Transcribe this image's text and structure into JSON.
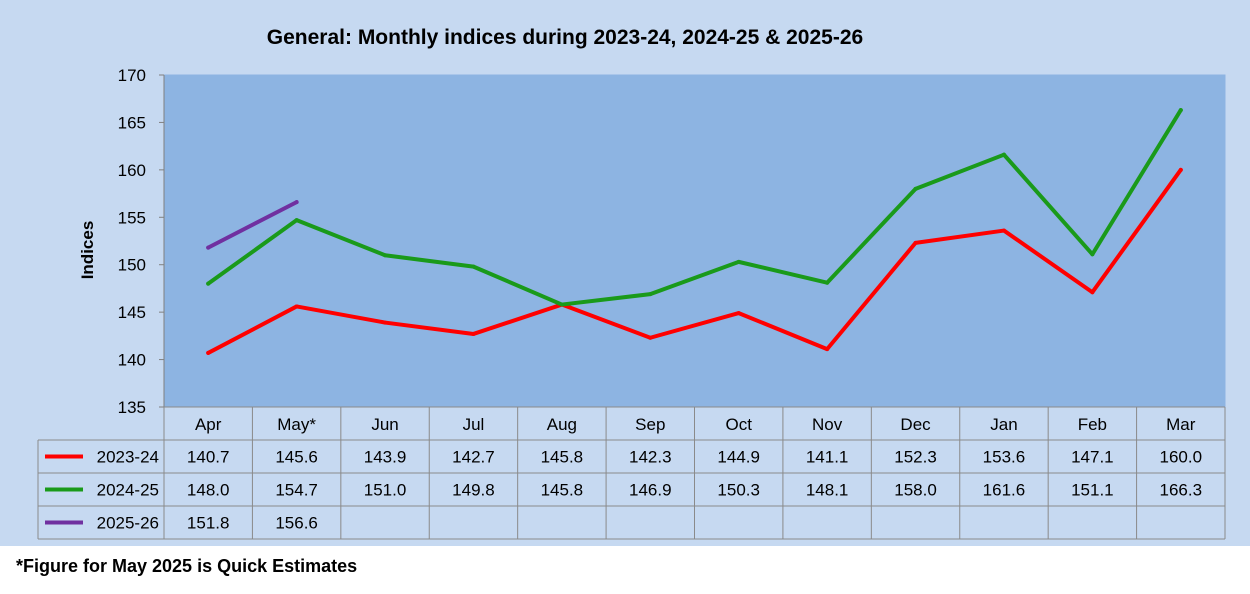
{
  "footnote": "*Figure for May 2025 is Quick Estimates",
  "colors": {
    "background": "#c6d9f1",
    "plot_area": "#8db4e2",
    "series_2023_24": "#ff0000",
    "series_2024_25": "#1a9a1a",
    "series_2025_26": "#7030a0"
  },
  "chart_data": {
    "type": "line",
    "title": "General: Monthly indices during 2023-24, 2024-25 & 2025-26",
    "ylabel": "Indices",
    "xlabel": "",
    "ylim": [
      135,
      170
    ],
    "yticks": [
      135,
      140,
      145,
      150,
      155,
      160,
      165,
      170
    ],
    "grid": false,
    "legend": "data table below the plot",
    "categories": [
      "Apr",
      "May*",
      "Jun",
      "Jul",
      "Aug",
      "Sep",
      "Oct",
      "Nov",
      "Dec",
      "Jan",
      "Feb",
      "Mar"
    ],
    "series": [
      {
        "name": "2023-24",
        "color": "#ff0000",
        "values": [
          140.7,
          145.6,
          143.9,
          142.7,
          145.8,
          142.3,
          144.9,
          141.1,
          152.3,
          153.6,
          147.1,
          160.0
        ]
      },
      {
        "name": "2024-25",
        "color": "#1a9a1a",
        "values": [
          148.0,
          154.7,
          151.0,
          149.8,
          145.8,
          146.9,
          150.3,
          148.1,
          158.0,
          161.6,
          151.1,
          166.3
        ]
      },
      {
        "name": "2025-26",
        "color": "#7030a0",
        "values": [
          151.8,
          156.6,
          null,
          null,
          null,
          null,
          null,
          null,
          null,
          null,
          null,
          null
        ]
      }
    ]
  }
}
